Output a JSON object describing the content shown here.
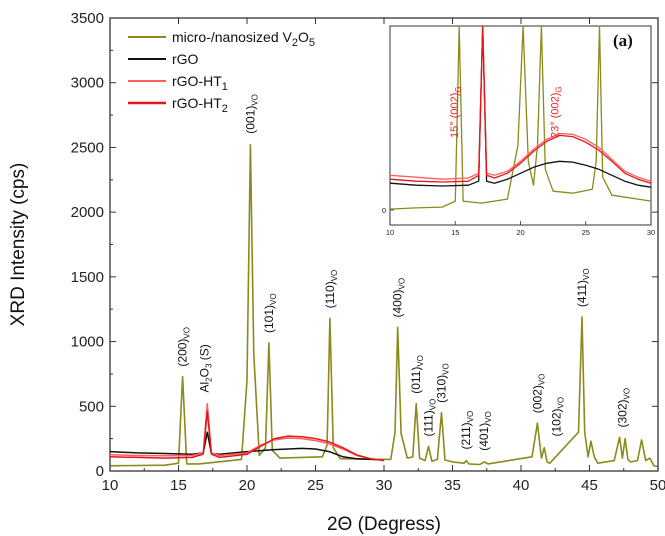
{
  "chart_data": {
    "type": "line",
    "panel_label": "(a)",
    "xlabel": "2Θ (Degress)",
    "ylabel": "XRD Intensity (cps)",
    "xlim": [
      10,
      50
    ],
    "ylim": [
      0,
      3500
    ],
    "xticks": [
      10,
      15,
      20,
      25,
      30,
      35,
      40,
      45,
      50
    ],
    "yticks": [
      0,
      500,
      1000,
      1500,
      2000,
      2500,
      3000,
      3500
    ],
    "legend_position": "top-left",
    "series": [
      {
        "name": "micro-/nanosized V2O5",
        "name_main": "micro-/nanosized V",
        "name_sub1": "2",
        "name_mid": "O",
        "name_sub2": "5",
        "color": "#8b8a1a",
        "x": [
          10,
          14,
          15.0,
          15.3,
          15.6,
          16.5,
          19.6,
          20.0,
          20.25,
          20.5,
          20.9,
          21.35,
          21.6,
          21.85,
          22.4,
          25.5,
          25.85,
          26.05,
          26.3,
          26.8,
          30.5,
          30.8,
          31.0,
          31.25,
          31.7,
          32.1,
          32.35,
          32.6,
          33.0,
          33.25,
          33.5,
          33.9,
          34.2,
          34.45,
          35.0,
          35.85,
          36.0,
          36.2,
          37.0,
          37.3,
          37.6,
          40.8,
          41.2,
          41.5,
          41.7,
          41.9,
          42.1,
          44.2,
          44.45,
          44.65,
          44.9,
          45.1,
          45.35,
          45.6,
          46.8,
          47.2,
          47.4,
          47.6,
          47.8,
          48.0,
          48.5,
          48.8,
          49.1,
          49.4,
          49.7,
          50
        ],
        "y": [
          40,
          45,
          60,
          730,
          55,
          55,
          90,
          700,
          2520,
          900,
          120,
          180,
          990,
          160,
          100,
          110,
          200,
          1180,
          180,
          95,
          90,
          300,
          1110,
          290,
          100,
          110,
          520,
          100,
          80,
          190,
          75,
          90,
          450,
          85,
          70,
          60,
          80,
          55,
          50,
          70,
          55,
          110,
          370,
          100,
          180,
          70,
          60,
          300,
          1190,
          300,
          110,
          230,
          110,
          60,
          80,
          260,
          100,
          250,
          90,
          70,
          80,
          240,
          80,
          100,
          40,
          35
        ]
      },
      {
        "name": "rGO",
        "color": "#111111",
        "x": [
          10,
          12,
          14,
          16,
          16.8,
          17.1,
          17.4,
          18,
          20,
          22,
          24,
          25,
          26,
          27,
          28,
          29,
          30
        ],
        "y": [
          150,
          140,
          135,
          130,
          140,
          300,
          135,
          130,
          150,
          165,
          175,
          170,
          150,
          110,
          95,
          90,
          85
        ]
      },
      {
        "name": "rGO-HT1",
        "name_main": "rGO-HT",
        "name_sub": "1",
        "color": "#ff5e5e",
        "x": [
          10,
          12,
          14,
          16,
          16.8,
          17.1,
          17.4,
          18,
          20,
          21,
          22,
          23,
          24,
          25,
          26,
          27,
          28,
          29,
          30
        ],
        "y": [
          125,
          120,
          118,
          120,
          140,
          520,
          140,
          120,
          140,
          200,
          240,
          255,
          250,
          235,
          210,
          170,
          120,
          95,
          85
        ]
      },
      {
        "name": "rGO-HT2",
        "name_main": "rGO-HT",
        "name_sub": "2",
        "color": "#e8141a",
        "x": [
          10,
          12,
          14,
          16,
          16.8,
          17.1,
          17.4,
          18,
          20,
          21,
          22,
          23,
          24,
          25,
          26,
          27,
          28,
          29,
          30
        ],
        "y": [
          110,
          105,
          100,
          105,
          130,
          460,
          130,
          105,
          130,
          190,
          250,
          270,
          265,
          250,
          225,
          180,
          125,
          95,
          80
        ]
      }
    ],
    "peak_labels": [
      {
        "main": "(200)",
        "sub": "VO",
        "x": 15.3,
        "y": 760
      },
      {
        "main": "Al",
        "sub": "2",
        "mid": "O",
        "sub2": "3",
        "tail": " (S)",
        "x": 16.9,
        "y": 560
      },
      {
        "main": "(001)",
        "sub": "VO",
        "x": 20.25,
        "y": 2560
      },
      {
        "main": "(101)",
        "sub": "VO",
        "x": 21.6,
        "y": 1020
      },
      {
        "main": "(110)",
        "sub": "VO",
        "x": 26.05,
        "y": 1210
      },
      {
        "main": "(400)",
        "sub": "VO",
        "x": 31.0,
        "y": 1140
      },
      {
        "main": "(011)",
        "sub": "VO",
        "x": 32.35,
        "y": 550
      },
      {
        "main": "(111)",
        "sub": "VO",
        "x": 33.25,
        "y": 220
      },
      {
        "main": "(310)",
        "sub": "VO",
        "x": 34.2,
        "y": 480
      },
      {
        "main": "(211)",
        "sub": "VO",
        "x": 36.0,
        "y": 120
      },
      {
        "main": "(401)",
        "sub": "VO",
        "x": 37.3,
        "y": 110
      },
      {
        "main": "(002)",
        "sub": "VO",
        "x": 41.2,
        "y": 400
      },
      {
        "main": "(102)",
        "sub": "VO",
        "x": 42.6,
        "y": 220
      },
      {
        "main": "(411)",
        "sub": "VO",
        "x": 44.45,
        "y": 1220
      },
      {
        "main": "(302)",
        "sub": "VO",
        "x": 47.4,
        "y": 290
      }
    ],
    "inset": {
      "xlim": [
        10,
        30
      ],
      "xticks": [
        10,
        15,
        20,
        25,
        30
      ],
      "ytick_label": "0",
      "ylim": [
        0,
        500
      ],
      "annotations": [
        {
          "text": "15° (002)",
          "sub": "G",
          "x": 15.5
        },
        {
          "text": "23° (002)",
          "sub": "G",
          "x": 23.2
        }
      ],
      "series": [
        {
          "name": "micro-/nanosized V2O5",
          "color": "#8b8a1a",
          "x": [
            10,
            12,
            14,
            15.0,
            15.3,
            15.6,
            17,
            19,
            19.8,
            20.2,
            20.6,
            21.0,
            21.3,
            21.6,
            21.9,
            22.5,
            24,
            25.5,
            25.8,
            26.05,
            26.3,
            27,
            29,
            30
          ],
          "y": [
            40,
            43,
            45,
            60,
            600,
            60,
            55,
            65,
            200,
            900,
            160,
            100,
            200,
            900,
            140,
            85,
            80,
            90,
            160,
            900,
            120,
            75,
            65,
            60
          ]
        },
        {
          "name": "rGO",
          "color": "#111111",
          "x": [
            10,
            12,
            14,
            16,
            16.8,
            17.1,
            17.4,
            18,
            19,
            20,
            21,
            22,
            23,
            24,
            25,
            26,
            27,
            28,
            29,
            30
          ],
          "y": [
            105,
            100,
            98,
            100,
            110,
            900,
            110,
            105,
            115,
            130,
            145,
            155,
            160,
            158,
            150,
            140,
            125,
            110,
            100,
            95
          ]
        },
        {
          "name": "rGO-HT1",
          "color": "#ff5e5e",
          "x": [
            10,
            12,
            14,
            16,
            16.8,
            17.1,
            17.4,
            18,
            19,
            20,
            21,
            22,
            23,
            24,
            25,
            26,
            27,
            28,
            29,
            30
          ],
          "y": [
            125,
            120,
            115,
            118,
            130,
            900,
            130,
            125,
            135,
            160,
            190,
            215,
            230,
            228,
            215,
            195,
            165,
            135,
            120,
            110
          ]
        },
        {
          "name": "rGO-HT2",
          "color": "#e8141a",
          "x": [
            10,
            12,
            14,
            16,
            16.8,
            17.1,
            17.4,
            18,
            19,
            20,
            21,
            22,
            23,
            24,
            25,
            26,
            27,
            28,
            29,
            30
          ],
          "y": [
            115,
            110,
            108,
            110,
            125,
            900,
            125,
            118,
            130,
            155,
            185,
            210,
            225,
            222,
            208,
            188,
            160,
            130,
            115,
            105
          ]
        }
      ]
    }
  }
}
